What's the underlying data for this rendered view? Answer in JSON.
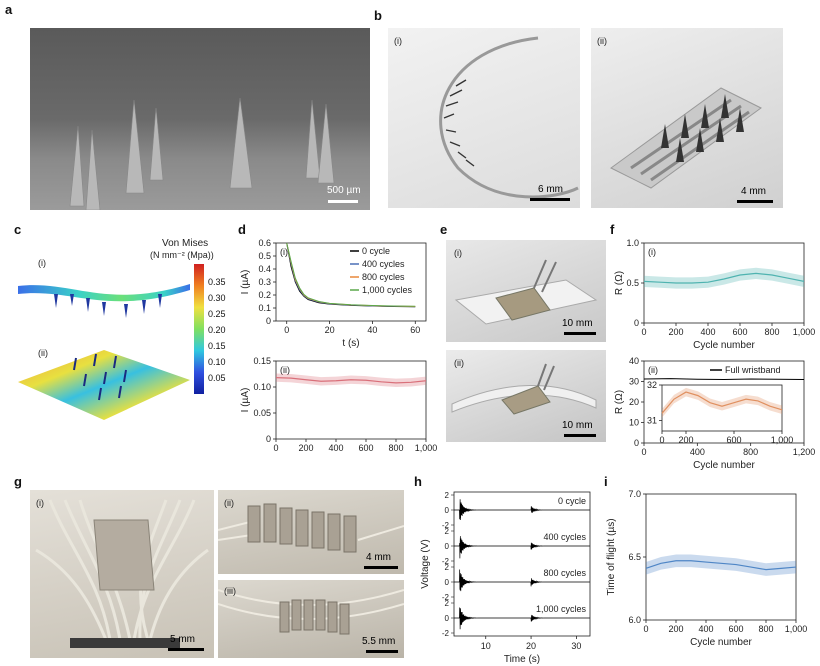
{
  "panels": {
    "a": {
      "label": "a",
      "scale": "500 µm"
    },
    "b": {
      "label": "b",
      "i": "(i)",
      "ii": "(ii)",
      "scale_i": "6 mm",
      "scale_ii": "4 mm"
    },
    "c": {
      "label": "c",
      "i": "(i)",
      "ii": "(ii)",
      "cbar_title1": "Von Mises",
      "cbar_title2": "(N mm⁻² (Mpa))",
      "cbar_ticks": [
        "0.35",
        "0.30",
        "0.25",
        "0.20",
        "0.15",
        "0.10",
        "0.05"
      ]
    },
    "d": {
      "label": "d"
    },
    "e": {
      "label": "e",
      "i": "(i)",
      "ii": "(ii)",
      "scale_i": "10 mm",
      "scale_ii": "10 mm"
    },
    "f": {
      "label": "f"
    },
    "g": {
      "label": "g",
      "i": "(i)",
      "ii": "(ii)",
      "iii": "(iii)",
      "scale_i": "5 mm",
      "scale_ii": "4 mm",
      "scale_iii": "5.5 mm"
    },
    "h": {
      "label": "h"
    },
    "i": {
      "label": "i"
    }
  },
  "chart_data": [
    {
      "id": "d-i",
      "type": "line",
      "sublabel": "(i)",
      "xlabel": "t (s)",
      "ylabel": "I (µA)",
      "xlim": [
        -5,
        65
      ],
      "ylim": [
        0,
        0.6
      ],
      "xticks": [
        "0",
        "20",
        "40",
        "60"
      ],
      "yticks": [
        "0",
        "0.1",
        "0.2",
        "0.3",
        "0.4",
        "0.5",
        "0.6"
      ],
      "series": [
        {
          "name": "0 cycle",
          "color": "#000000",
          "x": [
            0,
            2,
            4,
            6,
            8,
            10,
            15,
            20,
            30,
            40,
            50,
            60
          ],
          "y": [
            0.6,
            0.42,
            0.3,
            0.23,
            0.19,
            0.165,
            0.14,
            0.13,
            0.12,
            0.115,
            0.112,
            0.11
          ]
        },
        {
          "name": "400 cycles",
          "color": "#4a6fb5",
          "x": [
            0,
            2,
            4,
            6,
            8,
            10,
            15,
            20,
            30,
            40,
            50,
            60
          ],
          "y": [
            0.6,
            0.44,
            0.31,
            0.24,
            0.195,
            0.17,
            0.145,
            0.132,
            0.122,
            0.116,
            0.113,
            0.111
          ]
        },
        {
          "name": "800 cycles",
          "color": "#e8893a",
          "x": [
            0,
            2,
            4,
            6,
            8,
            10,
            15,
            20,
            30,
            40,
            50,
            60
          ],
          "y": [
            0.6,
            0.45,
            0.32,
            0.25,
            0.2,
            0.175,
            0.148,
            0.135,
            0.124,
            0.118,
            0.114,
            0.112
          ]
        },
        {
          "name": "1,000 cycles",
          "color": "#5aa84a",
          "x": [
            0,
            2,
            4,
            6,
            8,
            10,
            15,
            20,
            30,
            40,
            50,
            60
          ],
          "y": [
            0.6,
            0.46,
            0.33,
            0.255,
            0.205,
            0.178,
            0.15,
            0.136,
            0.125,
            0.119,
            0.115,
            0.113
          ]
        }
      ]
    },
    {
      "id": "d-ii",
      "type": "line",
      "sublabel": "(ii)",
      "xlabel": "Cycle number",
      "ylabel": "I (µA)",
      "xlim": [
        0,
        1000
      ],
      "ylim": [
        0,
        0.15
      ],
      "xticks": [
        "0",
        "200",
        "400",
        "600",
        "800",
        "1,000"
      ],
      "yticks": [
        "0",
        "0.05",
        "0.10",
        "0.15"
      ],
      "series": [
        {
          "color": "#d9707a",
          "x": [
            0,
            100,
            200,
            300,
            400,
            500,
            600,
            700,
            800,
            900,
            1000
          ],
          "y": [
            0.118,
            0.117,
            0.114,
            0.111,
            0.112,
            0.114,
            0.113,
            0.11,
            0.108,
            0.109,
            0.112
          ],
          "band": 0.008
        }
      ]
    },
    {
      "id": "f-i",
      "type": "line",
      "sublabel": "(i)",
      "xlabel": "Cycle number",
      "ylabel": "R (Ω)",
      "xlim": [
        0,
        1000
      ],
      "ylim": [
        0,
        1.0
      ],
      "xticks": [
        "0",
        "200",
        "400",
        "600",
        "800",
        "1,000"
      ],
      "yticks": [
        "0",
        "0.5",
        "1.0"
      ],
      "series": [
        {
          "color": "#4fb3b0",
          "x": [
            0,
            100,
            200,
            300,
            400,
            500,
            600,
            700,
            800,
            900,
            1000
          ],
          "y": [
            0.52,
            0.51,
            0.5,
            0.5,
            0.51,
            0.55,
            0.6,
            0.62,
            0.6,
            0.56,
            0.52
          ],
          "band": 0.07
        }
      ]
    },
    {
      "id": "f-ii",
      "type": "line",
      "sublabel": "(ii)",
      "xlabel": "Cycle number",
      "ylabel": "R (Ω)",
      "xlim": [
        0,
        1200
      ],
      "ylim": [
        0,
        40
      ],
      "xticks": [
        "0",
        "400",
        "800",
        "1,200"
      ],
      "yticks": [
        "0",
        "10",
        "20",
        "30",
        "40"
      ],
      "series": [
        {
          "name": "Full wristband",
          "color": "#000000",
          "x": [
            0,
            200,
            400,
            600,
            800,
            1000,
            1200
          ],
          "y": [
            31.2,
            31.4,
            31.1,
            31.0,
            31.2,
            31.1,
            31.0
          ]
        }
      ],
      "inset": {
        "xlim": [
          0,
          1000
        ],
        "ylim": [
          30.7,
          32
        ],
        "xticks": [
          "0",
          "200",
          "600",
          "1,000"
        ],
        "yticks": [
          "31",
          "32"
        ],
        "series": [
          {
            "color": "#e09060",
            "x": [
              0,
              100,
              200,
              300,
              400,
              500,
              600,
              700,
              800,
              900,
              1000
            ],
            "y": [
              31.2,
              31.6,
              31.8,
              31.7,
              31.5,
              31.4,
              31.5,
              31.6,
              31.55,
              31.4,
              31.3
            ],
            "band": 0.12
          }
        ]
      }
    },
    {
      "id": "h",
      "type": "line",
      "xlabel": "Time (s)",
      "ylabel": "Voltage (V)",
      "xlim": [
        3,
        33
      ],
      "ylim": [
        -2,
        2
      ],
      "xticks": [
        "10",
        "20",
        "30"
      ],
      "yticks": [
        "2",
        "0",
        "-2"
      ],
      "traces": [
        "0 cycle",
        "400 cycles",
        "800 cycles",
        "1,000 cycles"
      ]
    },
    {
      "id": "i",
      "type": "line",
      "xlabel": "Cycle number",
      "ylabel": "Time of flight (µs)",
      "xlim": [
        0,
        1000
      ],
      "ylim": [
        6.0,
        7.0
      ],
      "xticks": [
        "0",
        "200",
        "400",
        "600",
        "800",
        "1,000"
      ],
      "yticks": [
        "6.0",
        "6.5",
        "7.0"
      ],
      "series": [
        {
          "color": "#4f86c6",
          "x": [
            0,
            100,
            200,
            300,
            400,
            500,
            600,
            700,
            800,
            900,
            1000
          ],
          "y": [
            6.41,
            6.45,
            6.47,
            6.47,
            6.46,
            6.45,
            6.44,
            6.42,
            6.4,
            6.41,
            6.42
          ],
          "band": 0.05
        }
      ]
    }
  ]
}
